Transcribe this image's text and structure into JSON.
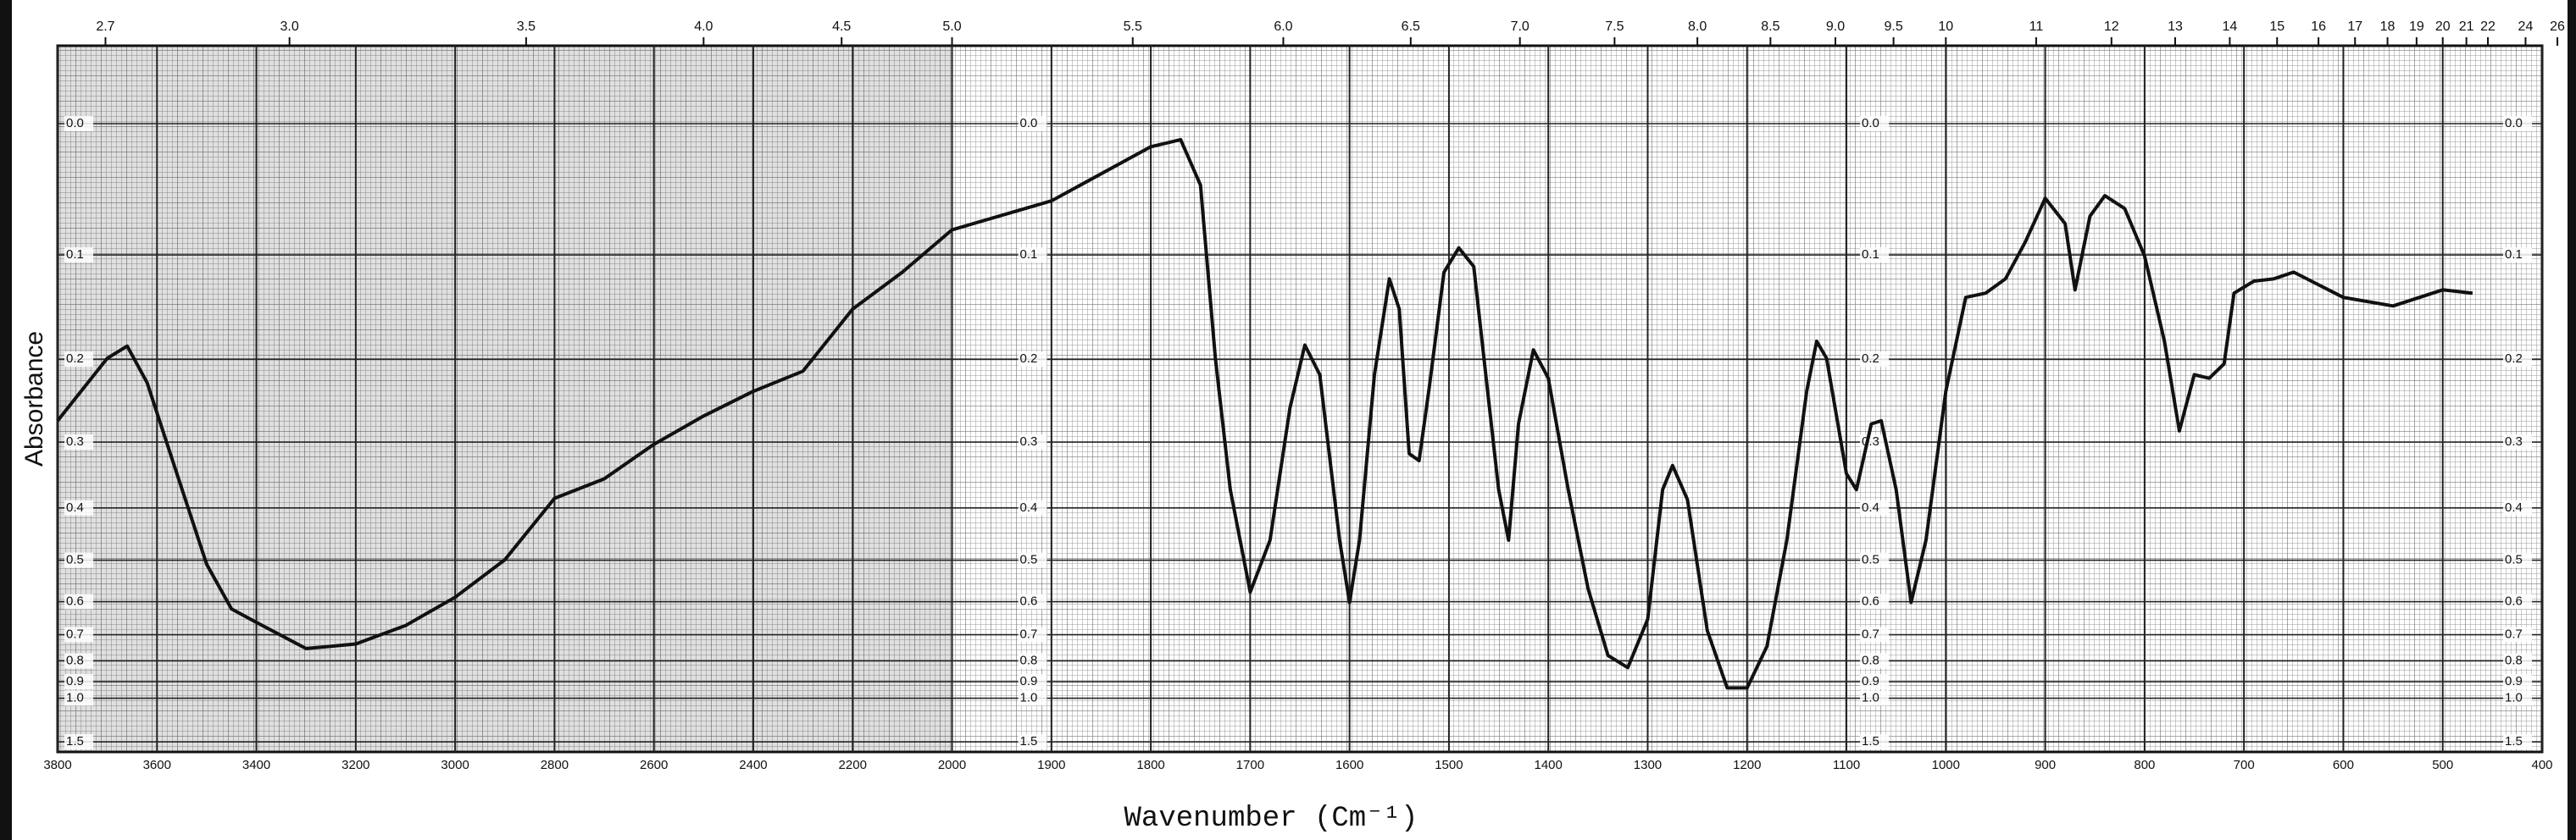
{
  "chart_data": {
    "type": "line",
    "x_label": "Wavenumber (Cm⁻¹)",
    "y_label": "Absorbance",
    "y_scale": "absorbance",
    "color": "#111111",
    "grid": true,
    "xlim": [
      3800,
      400
    ],
    "xticks": [
      3800,
      3600,
      3400,
      3200,
      3000,
      2800,
      2600,
      2400,
      2200,
      2000,
      1900,
      1800,
      1700,
      1600,
      1500,
      1400,
      1300,
      1200,
      1100,
      1000,
      900,
      800,
      700,
      600,
      500,
      400
    ],
    "top_ticks": [
      2.7,
      {
        "value": 3,
        "label": "3.0"
      },
      3.5,
      {
        "value": 4,
        "label": "4.0"
      },
      4.5,
      {
        "value": 5,
        "label": "5.0"
      },
      5.5,
      {
        "value": 6,
        "label": "6.0"
      },
      6.5,
      {
        "value": 7,
        "label": "7.0"
      },
      7.5,
      {
        "value": 8,
        "label": "8.0"
      },
      8.5,
      {
        "value": 9,
        "label": "9.0"
      },
      9.5,
      10,
      11,
      12,
      13,
      14,
      15,
      16,
      17,
      18,
      19,
      20,
      21,
      22,
      24,
      26
    ],
    "ylim": [
      -0.05,
      1.8
    ],
    "yticks": [
      {
        "value": 0,
        "label": "0.0"
      },
      0.1,
      0.2,
      0.3,
      0.4,
      0.5,
      0.6,
      0.7,
      0.8,
      0.9,
      {
        "value": 1,
        "label": "1.0"
      },
      1.5
    ],
    "x": [
      3800,
      3700,
      3660,
      3620,
      3560,
      3500,
      3450,
      3400,
      3300,
      3200,
      3100,
      3000,
      2900,
      2800,
      2700,
      2600,
      2500,
      2400,
      2300,
      2200,
      2100,
      2000,
      1900,
      1800,
      1770,
      1750,
      1735,
      1720,
      1700,
      1680,
      1660,
      1645,
      1630,
      1610,
      1600,
      1590,
      1575,
      1560,
      1550,
      1540,
      1530,
      1520,
      1505,
      1490,
      1475,
      1460,
      1450,
      1440,
      1430,
      1415,
      1400,
      1380,
      1360,
      1340,
      1320,
      1300,
      1285,
      1275,
      1260,
      1240,
      1220,
      1200,
      1180,
      1160,
      1140,
      1130,
      1120,
      1100,
      1090,
      1075,
      1065,
      1050,
      1035,
      1020,
      1000,
      980,
      960,
      940,
      920,
      900,
      880,
      870,
      855,
      840,
      820,
      800,
      780,
      765,
      750,
      735,
      720,
      710,
      690,
      670,
      650,
      600,
      550,
      500,
      470
    ],
    "values": [
      0.272,
      0.199,
      0.186,
      0.226,
      0.345,
      0.509,
      0.62,
      0.66,
      0.75,
      0.733,
      0.67,
      0.588,
      0.499,
      0.384,
      0.353,
      0.303,
      0.266,
      0.236,
      0.213,
      0.149,
      0.115,
      0.079,
      0.056,
      0.016,
      0.011,
      0.044,
      0.199,
      0.37,
      0.575,
      0.459,
      0.256,
      0.185,
      0.217,
      0.459,
      0.602,
      0.459,
      0.217,
      0.121,
      0.149,
      0.316,
      0.326,
      0.233,
      0.115,
      0.094,
      0.11,
      0.247,
      0.37,
      0.459,
      0.276,
      0.19,
      0.221,
      0.37,
      0.566,
      0.777,
      0.83,
      0.65,
      0.37,
      0.333,
      0.386,
      0.686,
      0.935,
      0.935,
      0.742,
      0.459,
      0.236,
      0.181,
      0.199,
      0.345,
      0.37,
      0.276,
      0.272,
      0.37,
      0.602,
      0.459,
      0.236,
      0.138,
      0.134,
      0.121,
      0.089,
      0.054,
      0.074,
      0.131,
      0.068,
      0.052,
      0.062,
      0.101,
      0.181,
      0.285,
      0.217,
      0.221,
      0.205,
      0.134,
      0.123,
      0.121,
      0.115,
      0.138,
      0.146,
      0.131,
      0.134
    ]
  }
}
